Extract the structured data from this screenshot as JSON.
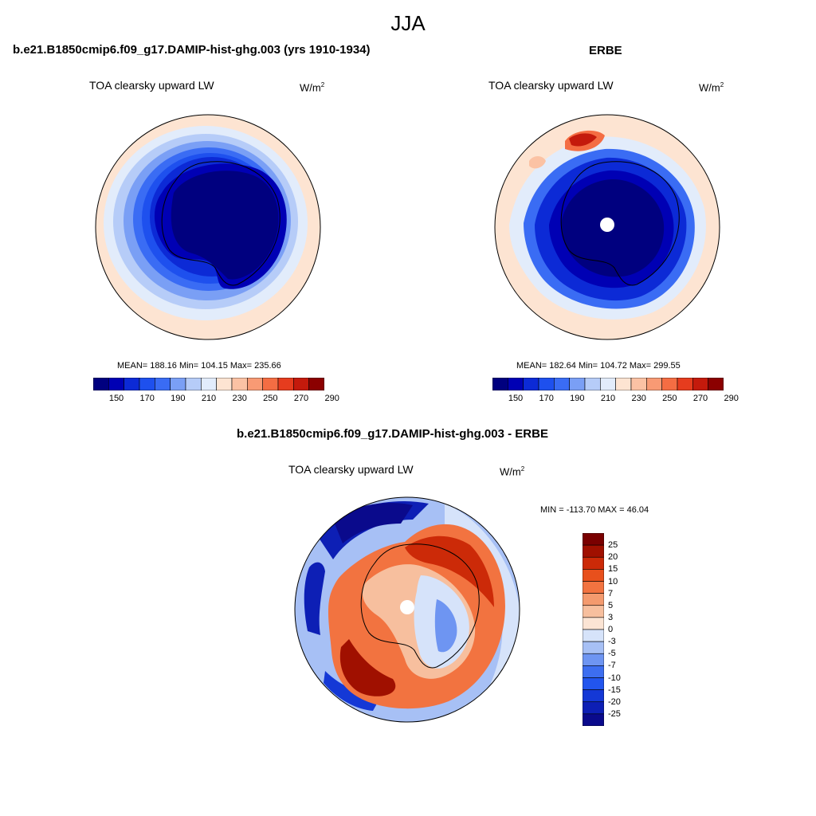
{
  "figure": {
    "season": "JJA",
    "panels": [
      {
        "case_title": "b.e21.B1850cmip6.f09_g17.DAMIP-hist-ghg.003 (yrs 1910-1934)",
        "variable": "TOA clearsky upward LW",
        "units_base": "W/m",
        "units_exp": "2",
        "stats": "MEAN= 188.16  Min= 104.15  Max= 235.66",
        "colorbar_ticks": [
          "150",
          "170",
          "190",
          "210",
          "230",
          "250",
          "270",
          "290"
        ]
      },
      {
        "case_title": "ERBE",
        "variable": "TOA clearsky upward LW",
        "units_base": "W/m",
        "units_exp": "2",
        "stats": "MEAN= 182.64  Min= 104.72  Max= 299.55",
        "colorbar_ticks": [
          "150",
          "170",
          "190",
          "210",
          "230",
          "250",
          "270",
          "290"
        ]
      },
      {
        "case_title": "b.e21.B1850cmip6.f09_g17.DAMIP-hist-ghg.003 - ERBE",
        "variable": "TOA clearsky upward LW",
        "units_base": "W/m",
        "units_exp": "2",
        "stats": "MIN = -113.70 MAX =  46.04",
        "colorbar_ticks": [
          "25",
          "20",
          "15",
          "10",
          "7",
          "5",
          "3",
          "0",
          "-3",
          "-5",
          "-7",
          "-10",
          "-15",
          "-20",
          "-25"
        ]
      }
    ]
  },
  "colors": {
    "abs_scale": [
      "#00007f",
      "#0000b4",
      "#0c2ad6",
      "#1e50ee",
      "#3a6cf4",
      "#7a9ff5",
      "#b6ccf8",
      "#e2ecfb",
      "#fde4d2",
      "#fbc2a4",
      "#f89a74",
      "#f46d43",
      "#e63c1e",
      "#c41a0c",
      "#8b0000"
    ],
    "diff_scale": [
      "#0a0a8c",
      "#0d1fb5",
      "#1438d6",
      "#2255ee",
      "#3d6ef0",
      "#6e95f2",
      "#a7c0f5",
      "#d6e3fa",
      "#fbe4d4",
      "#f7bf9e",
      "#f49a6e",
      "#f27340",
      "#e8501c",
      "#cc2a08",
      "#a01000",
      "#7a0000"
    ]
  }
}
